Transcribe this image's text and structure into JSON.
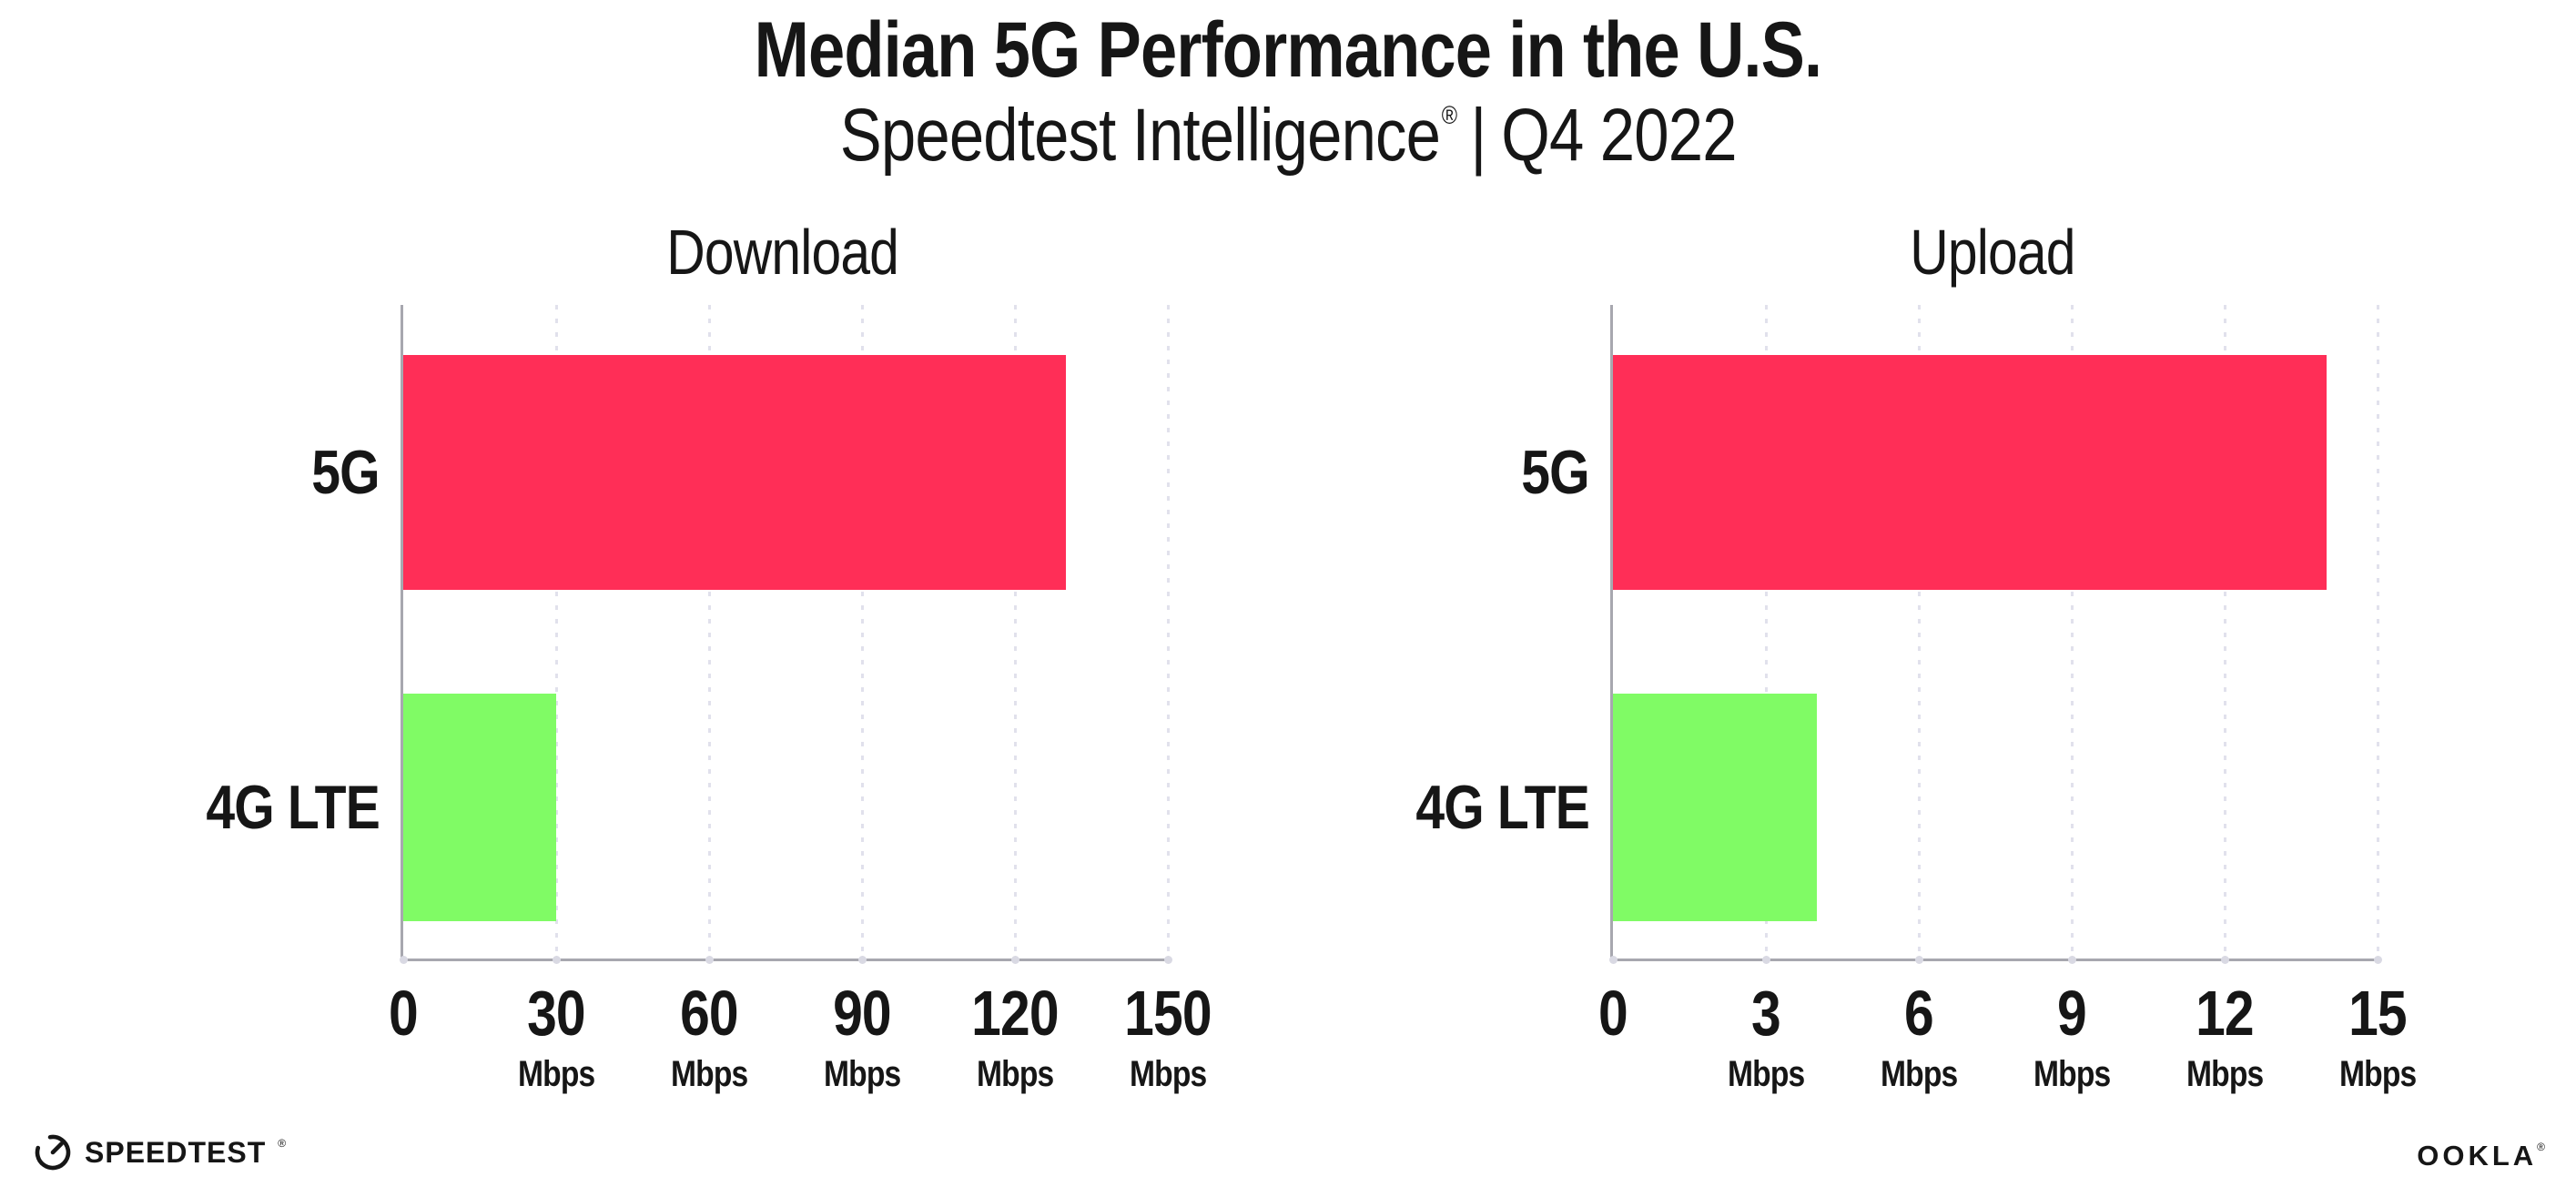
{
  "header": {
    "title": "Median 5G Performance in the U.S.",
    "subtitle": {
      "brand": "Speedtest Intelligence",
      "registered_mark": "®",
      "separator": "|",
      "period": "Q4 2022"
    }
  },
  "chart_data": [
    {
      "type": "bar",
      "orientation": "horizontal",
      "title": "Download",
      "categories": [
        "5G",
        "4G LTE"
      ],
      "values": [
        130,
        30
      ],
      "unit": "Mbps",
      "xlim": [
        0,
        150
      ],
      "xticks": [
        0,
        30,
        60,
        90,
        120,
        150
      ],
      "series_colors": [
        "#ff2e57",
        "#80fb65"
      ],
      "grid": "dotted-vertical",
      "legend": "none"
    },
    {
      "type": "bar",
      "orientation": "horizontal",
      "title": "Upload",
      "categories": [
        "5G",
        "4G LTE"
      ],
      "values": [
        14,
        4
      ],
      "unit": "Mbps",
      "xlim": [
        0,
        15
      ],
      "xticks": [
        0,
        3,
        6,
        9,
        12,
        15
      ],
      "series_colors": [
        "#ff2e57",
        "#80fb65"
      ],
      "grid": "dotted-vertical",
      "legend": "none"
    }
  ],
  "footer": {
    "speedtest_logo_text": "SPEEDTEST",
    "speedtest_mark": "®",
    "ookla_logo_text": "OOKLA",
    "ookla_mark": "®"
  },
  "colors": {
    "bar_5g": "#ff2e57",
    "bar_4g_lte": "#80fb65",
    "axis": "#a7a7af",
    "gridline": "#e1e1ec",
    "text": "#161616",
    "background": "#ffffff"
  }
}
